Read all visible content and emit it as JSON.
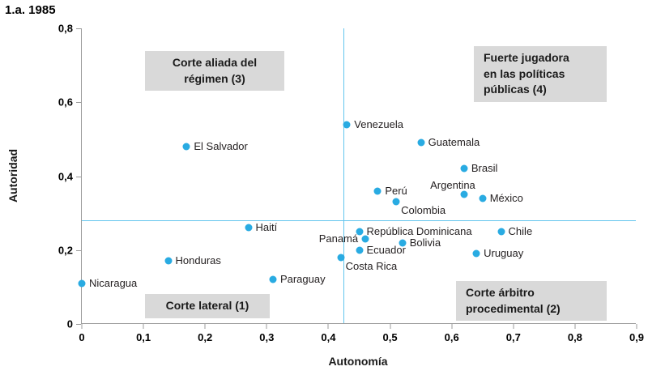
{
  "title": "1.a. 1985",
  "chart_data": {
    "type": "scatter",
    "title": "1.a. 1985",
    "xlabel": "Autonomía",
    "ylabel": "Autoridad",
    "xlim": [
      0,
      0.9
    ],
    "ylim": [
      0,
      0.8
    ],
    "grid": false,
    "point_color": "#29abe2",
    "reference_line_color": "#63c5ee",
    "quadrant_box_bg": "#d9d9d9",
    "x_ticks": [
      {
        "value": 0,
        "label": "0"
      },
      {
        "value": 0.1,
        "label": "0,1"
      },
      {
        "value": 0.2,
        "label": "0,2"
      },
      {
        "value": 0.3,
        "label": "0,3"
      },
      {
        "value": 0.4,
        "label": "0,4"
      },
      {
        "value": 0.5,
        "label": "0,5"
      },
      {
        "value": 0.6,
        "label": "0,6"
      },
      {
        "value": 0.7,
        "label": "0,7"
      },
      {
        "value": 0.8,
        "label": "0,8"
      },
      {
        "value": 0.9,
        "label": "0,9"
      }
    ],
    "y_ticks": [
      {
        "value": 0,
        "label": "0"
      },
      {
        "value": 0.2,
        "label": "0,2"
      },
      {
        "value": 0.4,
        "label": "0,4"
      },
      {
        "value": 0.6,
        "label": "0,6"
      },
      {
        "value": 0.8,
        "label": "0,8"
      }
    ],
    "reference_lines": {
      "x": 0.425,
      "y": 0.28
    },
    "quadrants": {
      "q3": {
        "lines": [
          "Corte aliada del",
          "régimen (3)"
        ]
      },
      "q4": {
        "lines": [
          "Fuerte jugadora",
          "en las políticas",
          "públicas (4)"
        ]
      },
      "q1": {
        "lines": [
          "Corte lateral (1)"
        ]
      },
      "q2": {
        "lines": [
          "Corte árbitro",
          "procedimental (2)"
        ]
      }
    },
    "points": [
      {
        "name": "Nicaragua",
        "x": 0.0,
        "y": 0.11,
        "label_pos": "right"
      },
      {
        "name": "Honduras",
        "x": 0.14,
        "y": 0.17,
        "label_pos": "right"
      },
      {
        "name": "El Salvador",
        "x": 0.17,
        "y": 0.48,
        "label_pos": "right"
      },
      {
        "name": "Haití",
        "x": 0.27,
        "y": 0.26,
        "label_pos": "right"
      },
      {
        "name": "Paraguay",
        "x": 0.31,
        "y": 0.12,
        "label_pos": "right"
      },
      {
        "name": "Costa Rica",
        "x": 0.42,
        "y": 0.18,
        "label_pos": "below-right"
      },
      {
        "name": "Venezuela",
        "x": 0.43,
        "y": 0.54,
        "label_pos": "right"
      },
      {
        "name": "Ecuador",
        "x": 0.45,
        "y": 0.2,
        "label_pos": "right"
      },
      {
        "name": "República Dominicana",
        "x": 0.45,
        "y": 0.25,
        "label_pos": "right"
      },
      {
        "name": "Panamá",
        "x": 0.46,
        "y": 0.23,
        "label_pos": "left"
      },
      {
        "name": "Perú",
        "x": 0.48,
        "y": 0.36,
        "label_pos": "right"
      },
      {
        "name": "Colombia",
        "x": 0.51,
        "y": 0.33,
        "label_pos": "below-right"
      },
      {
        "name": "Bolivia",
        "x": 0.52,
        "y": 0.22,
        "label_pos": "right"
      },
      {
        "name": "Guatemala",
        "x": 0.55,
        "y": 0.49,
        "label_pos": "right"
      },
      {
        "name": "Brasil",
        "x": 0.62,
        "y": 0.42,
        "label_pos": "right"
      },
      {
        "name": "Argentina",
        "x": 0.62,
        "y": 0.35,
        "label_pos": "above-left"
      },
      {
        "name": "México",
        "x": 0.65,
        "y": 0.34,
        "label_pos": "right"
      },
      {
        "name": "Uruguay",
        "x": 0.64,
        "y": 0.19,
        "label_pos": "right"
      },
      {
        "name": "Chile",
        "x": 0.68,
        "y": 0.25,
        "label_pos": "right"
      }
    ]
  }
}
